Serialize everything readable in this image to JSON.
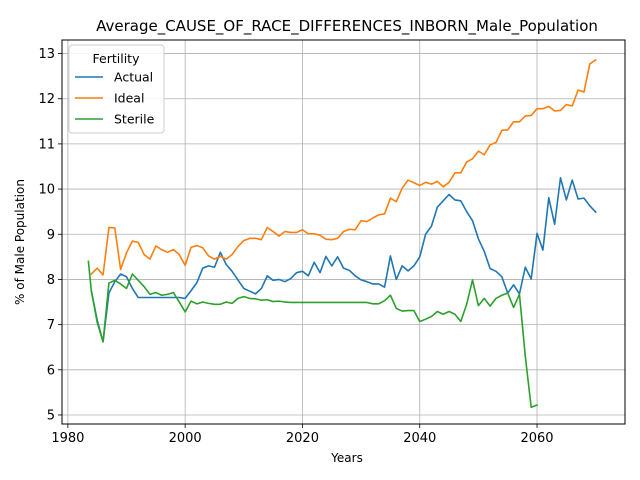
{
  "chart_data": {
    "type": "line",
    "title": "Average_CAUSE_OF_RACE_DIFFERENCES_INBORN_Male_Population",
    "xlabel": "Years",
    "ylabel": "% of Male Population",
    "xlim": [
      1979,
      2075
    ],
    "ylim": [
      4.8,
      13.3
    ],
    "xticks": [
      1980,
      2000,
      2020,
      2040,
      2060
    ],
    "yticks": [
      5,
      6,
      7,
      8,
      9,
      10,
      11,
      12,
      13
    ],
    "grid": true,
    "legend": {
      "title": "Fertility",
      "position": "top-left"
    },
    "series": [
      {
        "name": "Actual",
        "color": "#1f77b4",
        "x": [
          1984,
          1985,
          1986,
          1987,
          1988,
          1989,
          1990,
          1991,
          1992,
          1993,
          1994,
          1995,
          1996,
          1997,
          1998,
          1999,
          2000,
          2001,
          2002,
          2003,
          2004,
          2005,
          2006,
          2007,
          2008,
          2009,
          2010,
          2011,
          2012,
          2013,
          2014,
          2015,
          2016,
          2017,
          2018,
          2019,
          2020,
          2021,
          2022,
          2023,
          2024,
          2025,
          2026,
          2027,
          2028,
          2029,
          2030,
          2031,
          2032,
          2033,
          2034,
          2035,
          2036,
          2037,
          2038,
          2039,
          2040,
          2041,
          2042,
          2043,
          2044,
          2045,
          2046,
          2047,
          2048,
          2049,
          2050,
          2051,
          2052,
          2053,
          2054,
          2055,
          2056,
          2057,
          2058,
          2059,
          2060,
          2061,
          2062,
          2063,
          2064,
          2065,
          2066,
          2067,
          2068,
          2069,
          2070
        ],
        "values": [
          7.75,
          7.1,
          6.62,
          7.7,
          7.95,
          8.12,
          8.06,
          7.8,
          7.6,
          7.6,
          7.6,
          7.6,
          7.6,
          7.6,
          7.6,
          7.6,
          7.58,
          7.75,
          7.93,
          8.25,
          8.3,
          8.27,
          8.6,
          8.33,
          8.18,
          7.99,
          7.8,
          7.74,
          7.68,
          7.8,
          8.08,
          7.98,
          8.0,
          7.95,
          8.02,
          8.15,
          8.18,
          8.08,
          8.38,
          8.15,
          8.51,
          8.3,
          8.5,
          8.25,
          8.2,
          8.08,
          7.99,
          7.95,
          7.9,
          7.9,
          7.83,
          8.52,
          8.0,
          8.3,
          8.19,
          8.3,
          8.5,
          9.0,
          9.18,
          9.6,
          9.74,
          9.88,
          9.76,
          9.74,
          9.5,
          9.3,
          8.9,
          8.62,
          8.24,
          8.18,
          8.06,
          7.7,
          7.88,
          7.68,
          8.27,
          8.01,
          9.02,
          8.65,
          9.81,
          9.22,
          10.25,
          9.76,
          10.2,
          9.78,
          9.8,
          9.63,
          9.49
        ]
      },
      {
        "name": "Ideal",
        "color": "#ff7f0e",
        "x": [
          1984,
          1985,
          1986,
          1987,
          1988,
          1989,
          1990,
          1991,
          1992,
          1993,
          1994,
          1995,
          1996,
          1997,
          1998,
          1999,
          2000,
          2001,
          2002,
          2003,
          2004,
          2005,
          2006,
          2007,
          2008,
          2009,
          2010,
          2011,
          2012,
          2013,
          2014,
          2015,
          2016,
          2017,
          2018,
          2019,
          2020,
          2021,
          2022,
          2023,
          2024,
          2025,
          2026,
          2027,
          2028,
          2029,
          2030,
          2031,
          2032,
          2033,
          2034,
          2035,
          2036,
          2037,
          2038,
          2039,
          2040,
          2041,
          2042,
          2043,
          2044,
          2045,
          2046,
          2047,
          2048,
          2049,
          2050,
          2051,
          2052,
          2053,
          2054,
          2055,
          2056,
          2057,
          2058,
          2059,
          2060,
          2061,
          2062,
          2063,
          2064,
          2065,
          2066,
          2067,
          2068,
          2069,
          2070
        ],
        "values": [
          8.12,
          8.25,
          8.1,
          9.15,
          9.14,
          8.22,
          8.59,
          8.85,
          8.82,
          8.55,
          8.45,
          8.74,
          8.66,
          8.6,
          8.66,
          8.55,
          8.31,
          8.71,
          8.75,
          8.7,
          8.52,
          8.45,
          8.51,
          8.45,
          8.55,
          8.73,
          8.86,
          8.91,
          8.91,
          8.88,
          9.15,
          9.06,
          8.96,
          9.06,
          9.04,
          9.04,
          9.1,
          9.01,
          9.01,
          8.98,
          8.89,
          8.88,
          8.91,
          9.06,
          9.11,
          9.1,
          9.3,
          9.28,
          9.36,
          9.43,
          9.45,
          9.8,
          9.72,
          10.02,
          10.2,
          10.14,
          10.08,
          10.15,
          10.11,
          10.17,
          10.05,
          10.15,
          10.36,
          10.36,
          10.6,
          10.67,
          10.84,
          10.76,
          10.98,
          11.03,
          11.3,
          11.31,
          11.49,
          11.49,
          11.62,
          11.63,
          11.78,
          11.78,
          11.83,
          11.73,
          11.74,
          11.87,
          11.84,
          12.19,
          12.15,
          12.77,
          12.86
        ]
      },
      {
        "name": "Sterile",
        "color": "#2ca02c",
        "x": [
          1983.5,
          1984,
          1985,
          1986,
          1987,
          1988,
          1989,
          1990,
          1991,
          1992,
          1993,
          1994,
          1995,
          1996,
          1997,
          1998,
          1999,
          2000,
          2001,
          2002,
          2003,
          2004,
          2005,
          2006,
          2007,
          2008,
          2009,
          2010,
          2011,
          2012,
          2013,
          2014,
          2015,
          2016,
          2017,
          2018,
          2019,
          2020,
          2021,
          2022,
          2023,
          2024,
          2025,
          2026,
          2027,
          2028,
          2029,
          2030,
          2031,
          2032,
          2033,
          2034,
          2035,
          2036,
          2037,
          2038,
          2039,
          2040,
          2041,
          2042,
          2043,
          2044,
          2045,
          2046,
          2047,
          2048,
          2049,
          2050,
          2051,
          2052,
          2053,
          2054,
          2055,
          2056,
          2057,
          2058,
          2059,
          2060
        ],
        "values": [
          8.4,
          7.75,
          7.05,
          6.62,
          7.92,
          7.98,
          7.9,
          7.8,
          8.12,
          7.98,
          7.84,
          7.67,
          7.71,
          7.65,
          7.67,
          7.71,
          7.5,
          7.28,
          7.52,
          7.46,
          7.5,
          7.47,
          7.45,
          7.45,
          7.5,
          7.47,
          7.58,
          7.62,
          7.58,
          7.57,
          7.54,
          7.55,
          7.51,
          7.52,
          7.5,
          7.49,
          7.49,
          7.49,
          7.49,
          7.49,
          7.49,
          7.49,
          7.49,
          7.49,
          7.49,
          7.49,
          7.49,
          7.49,
          7.49,
          7.46,
          7.46,
          7.53,
          7.65,
          7.36,
          7.3,
          7.31,
          7.31,
          7.07,
          7.12,
          7.18,
          7.29,
          7.23,
          7.29,
          7.23,
          7.07,
          7.45,
          7.99,
          7.42,
          7.58,
          7.41,
          7.58,
          7.65,
          7.7,
          7.38,
          7.67,
          6.3,
          5.17,
          5.22
        ]
      }
    ]
  }
}
